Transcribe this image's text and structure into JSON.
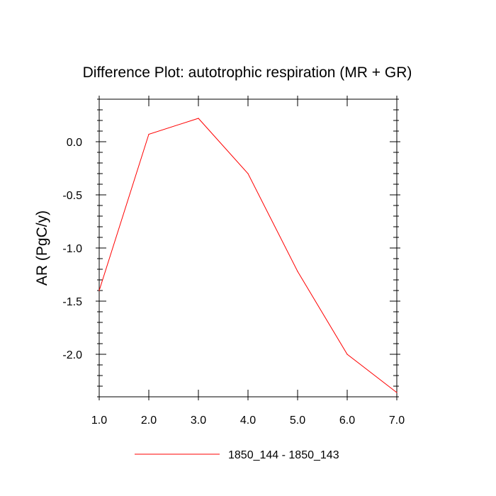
{
  "chart_data": {
    "type": "line",
    "title": "Difference Plot: autotrophic respiration (MR + GR)",
    "xlabel": "",
    "ylabel": "AR  (PgC/y)",
    "xlim": [
      1.0,
      7.0
    ],
    "ylim": [
      -2.4,
      0.4
    ],
    "xticks": [
      1.0,
      2.0,
      3.0,
      4.0,
      5.0,
      6.0,
      7.0
    ],
    "xtick_labels": [
      "1.0",
      "2.0",
      "3.0",
      "4.0",
      "5.0",
      "6.0",
      "7.0"
    ],
    "yticks": [
      0.0,
      -0.5,
      -1.0,
      -1.5,
      -2.0
    ],
    "ytick_labels": [
      "0.0",
      "-0.5",
      "-1.0",
      "-1.5",
      "-2.0"
    ],
    "grid": false,
    "legend_position": "bottom",
    "series": [
      {
        "name": "1850_144 - 1850_143",
        "color": "#ff0000",
        "x": [
          1,
          2,
          3,
          4,
          5,
          6,
          7
        ],
        "values": [
          -1.4,
          0.07,
          0.22,
          -0.3,
          -1.22,
          -2.0,
          -2.36
        ]
      }
    ]
  }
}
